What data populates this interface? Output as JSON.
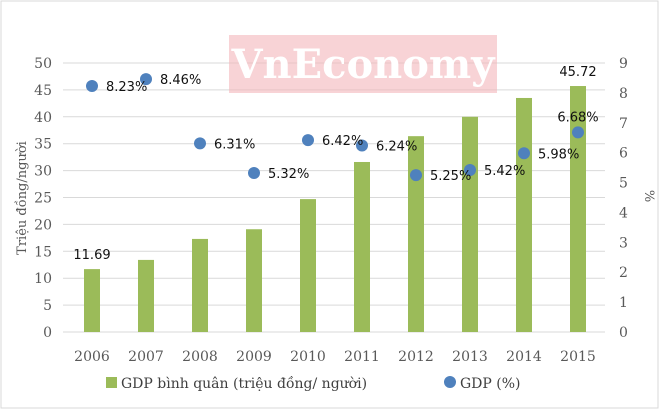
{
  "watermark": "VnEconomy",
  "chart_data": {
    "type": "bar",
    "categories": [
      "2006",
      "2007",
      "2008",
      "2009",
      "2010",
      "2011",
      "2012",
      "2013",
      "2014",
      "2015"
    ],
    "series": [
      {
        "name": "GDP bình quân (triệu đồng/ người)",
        "type": "bar",
        "axis": "left",
        "color": "#9BBB59",
        "values": [
          11.69,
          13.4,
          17.3,
          19.1,
          24.7,
          31.6,
          36.4,
          40.0,
          43.5,
          45.72
        ],
        "data_labels": {
          "0": "11.69",
          "9": "45.72"
        }
      },
      {
        "name": "GDP (%)",
        "type": "scatter",
        "axis": "right",
        "color": "#4F81BD",
        "values": [
          8.23,
          8.46,
          6.31,
          5.32,
          6.42,
          6.24,
          5.25,
          5.42,
          5.98,
          6.68
        ],
        "data_labels": [
          "8.23%",
          "8.46%",
          "6.31%",
          "5.32%",
          "6.42%",
          "6.24%",
          "5.25%",
          "5.42%",
          "5.98%",
          "6.68%"
        ]
      }
    ],
    "ylabel": "Triệu đồng/người",
    "ylim": [
      0,
      50
    ],
    "yticks": [
      "0",
      "5",
      "10",
      "15",
      "20",
      "25",
      "30",
      "35",
      "40",
      "45",
      "50"
    ],
    "y2label": "%",
    "y2lim": [
      0,
      9
    ],
    "y2ticks": [
      "0",
      "1",
      "2",
      "3",
      "4",
      "5",
      "6",
      "7",
      "8",
      "9"
    ],
    "grid": true,
    "legend": "bottom"
  }
}
